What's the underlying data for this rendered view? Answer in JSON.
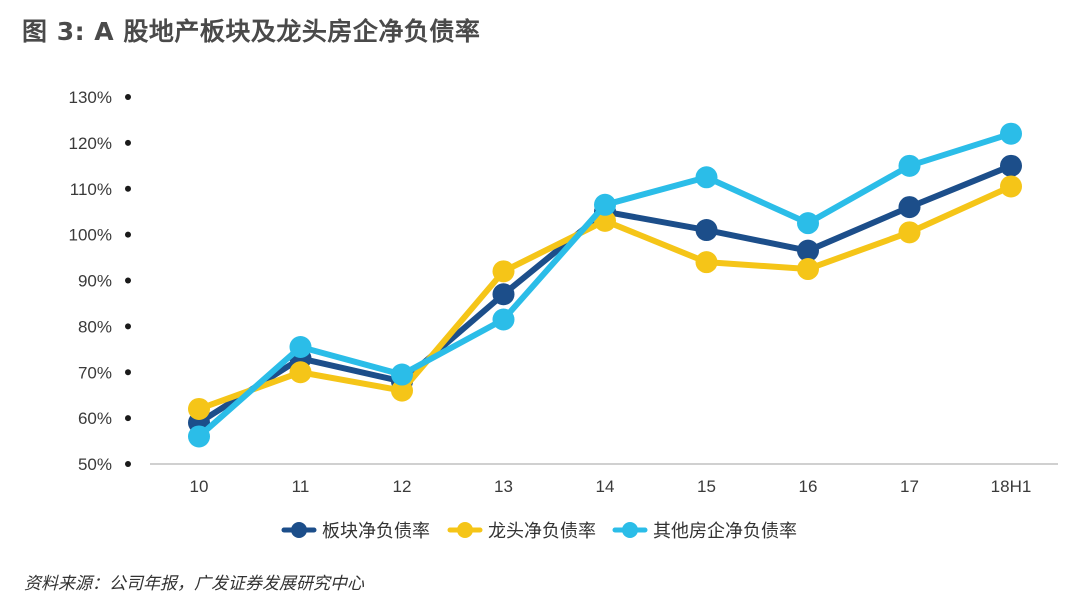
{
  "title": "图 3: A 股地产板块及龙头房企净负债率",
  "source": "资料来源：公司年报，广发证券发展研究中心",
  "chart_data": {
    "type": "line",
    "title": "图 3: A 股地产板块及龙头房企净负债率",
    "xlabel": "",
    "ylabel": "",
    "categories": [
      "10",
      "11",
      "12",
      "13",
      "14",
      "15",
      "16",
      "17",
      "18H1"
    ],
    "ylim": [
      50,
      130
    ],
    "yticks": [
      50,
      60,
      70,
      80,
      90,
      100,
      110,
      120,
      130
    ],
    "ytick_labels": [
      "50%",
      "60%",
      "70%",
      "80%",
      "90%",
      "100%",
      "110%",
      "120%",
      "130%"
    ],
    "grid": false,
    "legend_position": "bottom",
    "series": [
      {
        "name": "板块净负债率",
        "color": "#1c4e8a",
        "values": [
          59,
          73,
          68,
          87,
          105,
          101,
          96.5,
          106,
          115
        ]
      },
      {
        "name": "龙头净负债率",
        "color": "#f5c518",
        "values": [
          62,
          70,
          66,
          92,
          103,
          94,
          92.5,
          100.5,
          110.5
        ]
      },
      {
        "name": "其他房企净负债率",
        "color": "#2bbde8",
        "values": [
          56,
          75.5,
          69.5,
          81.5,
          106.5,
          112.5,
          102.5,
          115,
          122
        ]
      }
    ]
  }
}
